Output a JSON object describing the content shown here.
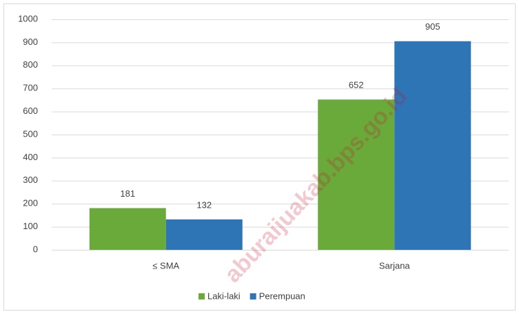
{
  "chart_data": {
    "type": "bar",
    "categories": [
      "≤ SMA",
      "Sarjana"
    ],
    "series": [
      {
        "name": "Laki-laki",
        "color": "#6aaa3a",
        "values": [
          181,
          652
        ]
      },
      {
        "name": "Perempuan",
        "color": "#2e75b6",
        "values": [
          132,
          905
        ]
      }
    ],
    "ylim": [
      0,
      1000
    ],
    "yticks": [
      0,
      100,
      200,
      300,
      400,
      500,
      600,
      700,
      800,
      900,
      1000
    ],
    "grid": true,
    "legend": "bottom",
    "watermark": "aburaijuakab.bps.go.id"
  }
}
